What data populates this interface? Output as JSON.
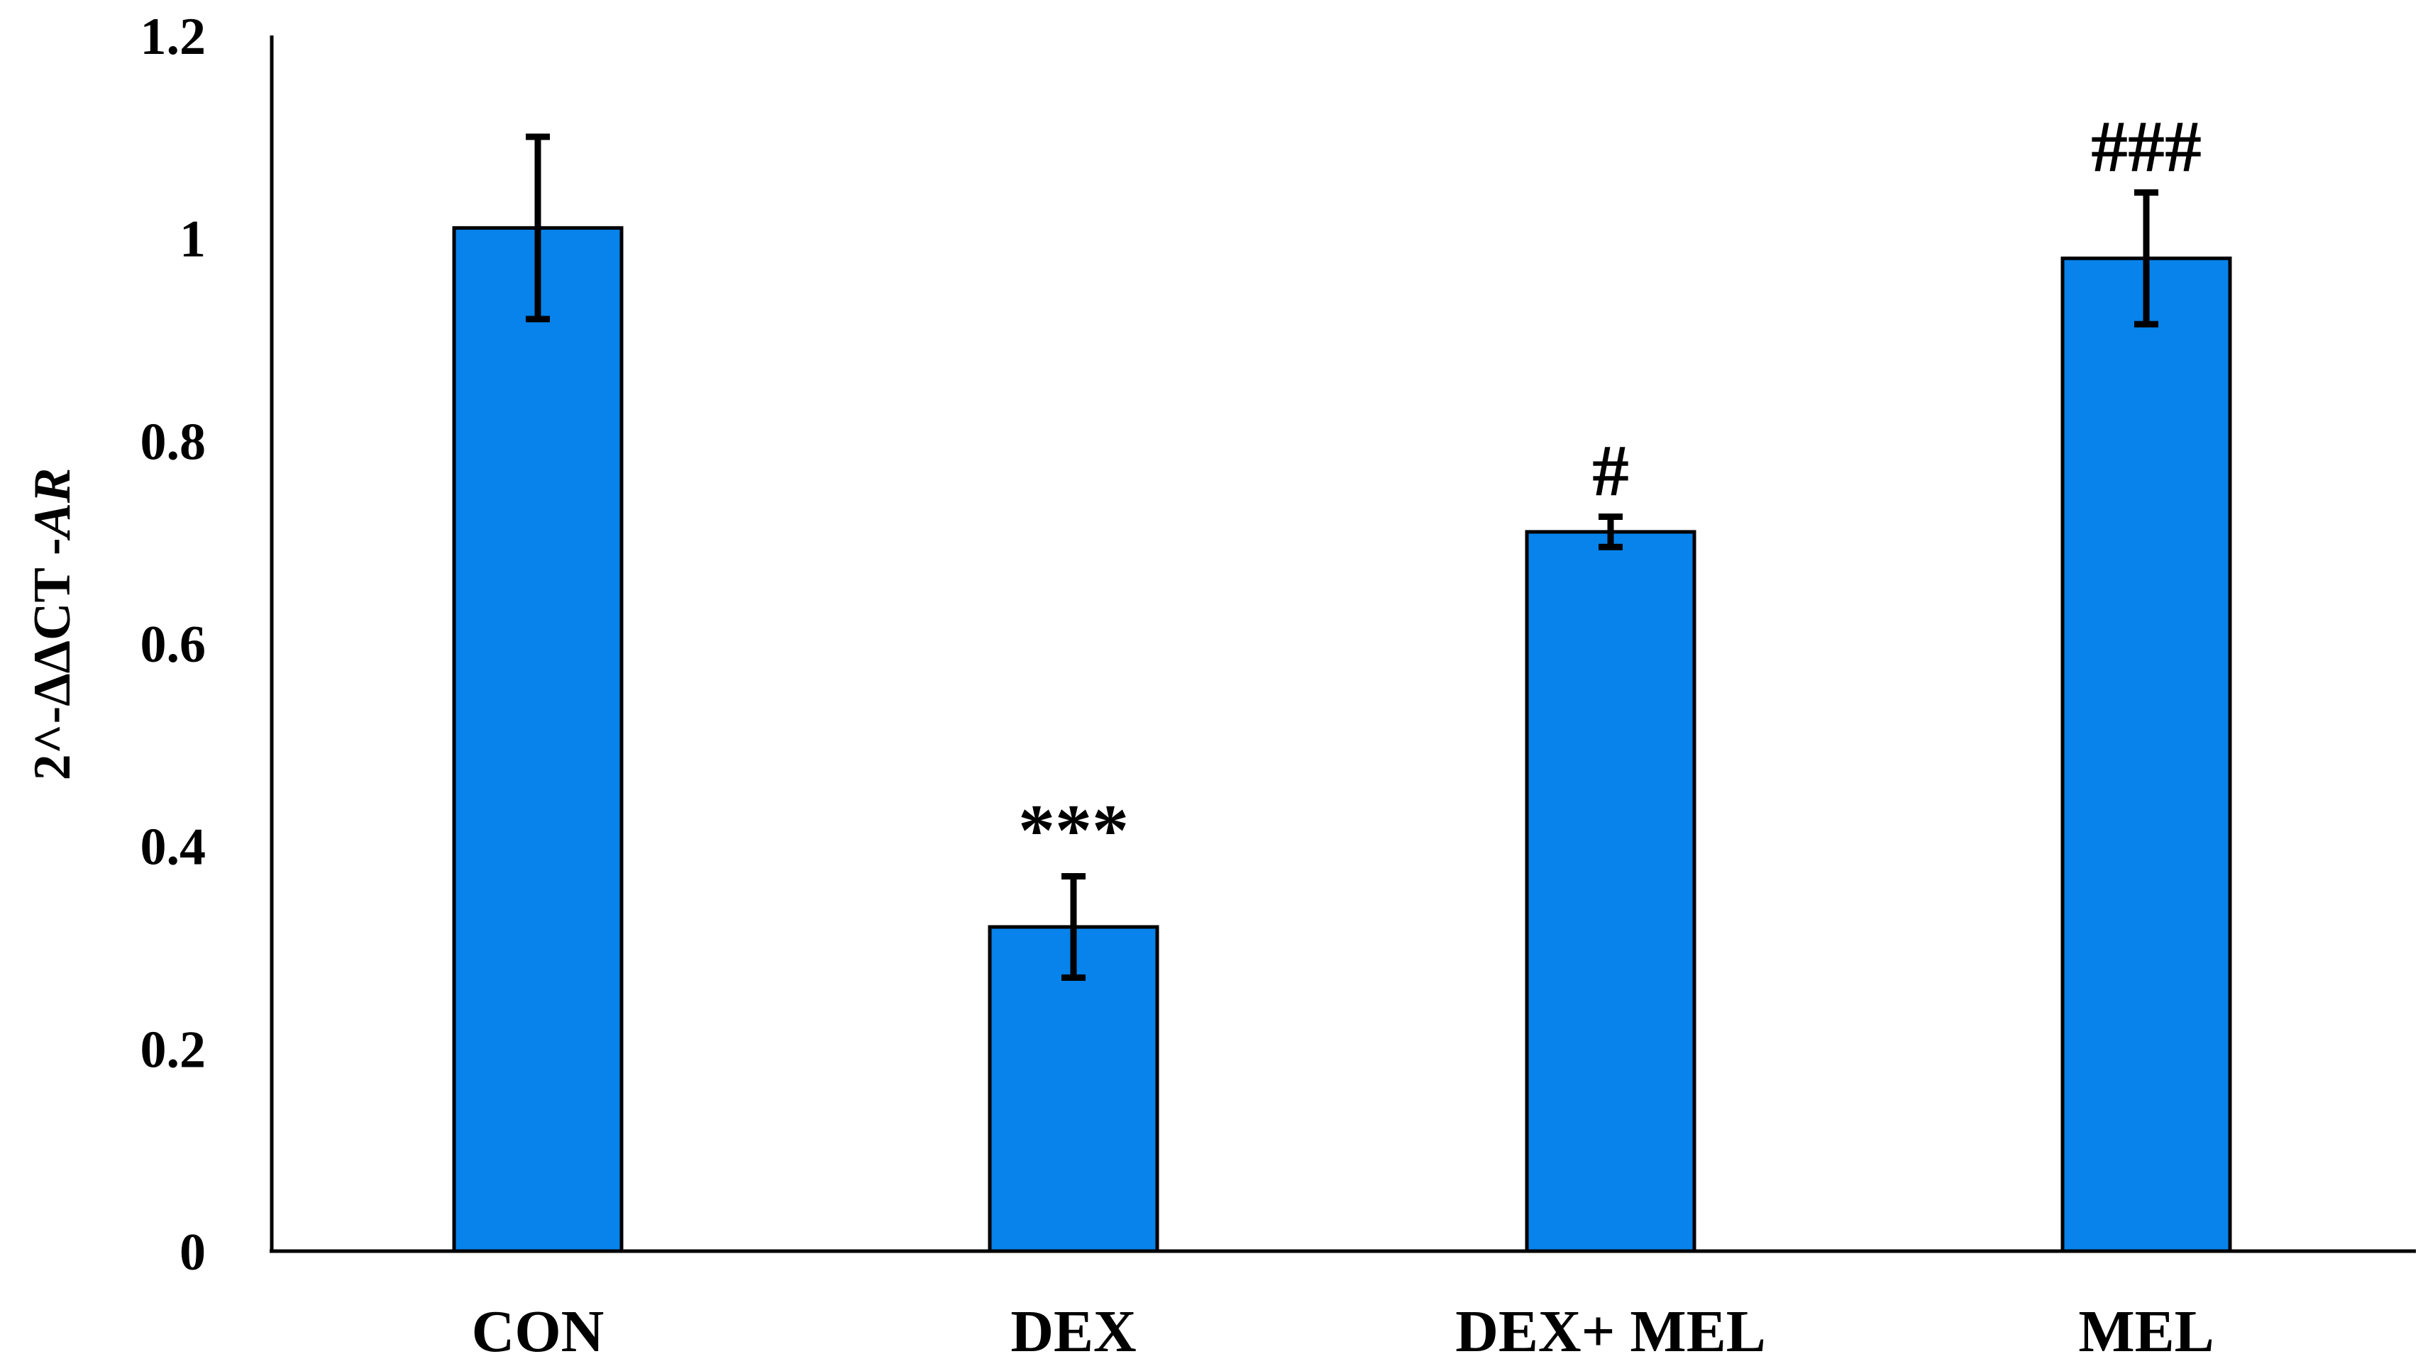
{
  "chart_data": {
    "type": "bar",
    "categories": [
      "CON",
      "DEX",
      "DEX+ MEL",
      "MEL"
    ],
    "values": [
      1.01,
      0.32,
      0.71,
      0.98
    ],
    "error": [
      0.09,
      0.05,
      0.015,
      0.065
    ],
    "annotations": [
      "",
      "***",
      "#",
      "###"
    ],
    "ylabel_main": "2^-ΔΔCT -",
    "ylabel_gene": "AR",
    "xlabel": "",
    "ylim": [
      0,
      1.2
    ],
    "yticks": [
      "0",
      "0.2",
      "0.4",
      "0.6",
      "0.8",
      "1",
      "1.2"
    ],
    "grid": false,
    "bar_color": "#0783EB"
  }
}
